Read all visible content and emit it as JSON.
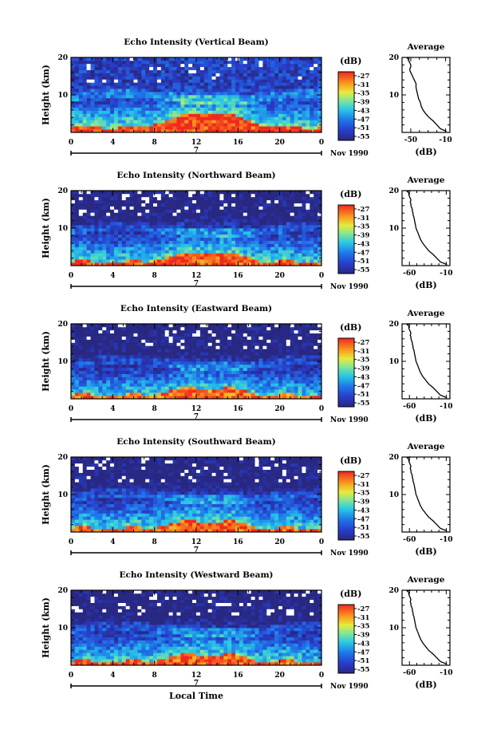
{
  "chart_data": [
    {
      "type": "heatmap",
      "title": "Echo Intensity (Vertical Beam)",
      "ylabel": "Height (km)",
      "xlabel": "",
      "x_ticks": [
        "0",
        "4",
        "8",
        "12",
        "16",
        "20",
        "0"
      ],
      "y_ticks": [
        "10",
        "20"
      ],
      "xlim": [
        0,
        24
      ],
      "ylim": [
        0,
        20
      ],
      "date_marker": "7",
      "date_label": "Nov 1990",
      "colorbar_label": "(dB)",
      "colorbar_ticks": [
        "-27",
        "-31",
        "-35",
        "-39",
        "-43",
        "-47",
        "-51",
        "-55"
      ],
      "surface_db": -27,
      "top_db": -50,
      "thermals": [
        1.5,
        3.5,
        0.8
      ]
    },
    {
      "type": "heatmap",
      "title": "Echo Intensity (Northward Beam)",
      "ylabel": "Height (km)",
      "xlabel": "",
      "x_ticks": [
        "0",
        "4",
        "8",
        "12",
        "16",
        "20",
        "0"
      ],
      "y_ticks": [
        "10",
        "20"
      ],
      "xlim": [
        0,
        24
      ],
      "ylim": [
        0,
        20
      ],
      "date_marker": "7",
      "date_label": "Nov 1990",
      "colorbar_label": "(dB)",
      "colorbar_ticks": [
        "-27",
        "-31",
        "-35",
        "-39",
        "-43",
        "-47",
        "-51",
        "-55"
      ],
      "surface_db": -28,
      "top_db": -55,
      "thermals": [
        1.0,
        2.5,
        1.0
      ]
    },
    {
      "type": "heatmap",
      "title": "Echo Intensity (Eastward Beam)",
      "ylabel": "Height (km)",
      "xlabel": "",
      "x_ticks": [
        "0",
        "4",
        "8",
        "12",
        "16",
        "20",
        "0"
      ],
      "y_ticks": [
        "10",
        "20"
      ],
      "xlim": [
        0,
        24
      ],
      "ylim": [
        0,
        20
      ],
      "date_marker": "7",
      "date_label": "Nov 1990",
      "colorbar_label": "(dB)",
      "colorbar_ticks": [
        "-27",
        "-31",
        "-35",
        "-39",
        "-43",
        "-47",
        "-51",
        "-55"
      ],
      "surface_db": -29,
      "top_db": -55,
      "thermals": [
        1.0,
        2.0,
        1.0
      ]
    },
    {
      "type": "heatmap",
      "title": "Echo Intensity (Southward Beam)",
      "ylabel": "Height (km)",
      "xlabel": "",
      "x_ticks": [
        "0",
        "4",
        "8",
        "12",
        "16",
        "20",
        "0"
      ],
      "y_ticks": [
        "10",
        "20"
      ],
      "xlim": [
        0,
        24
      ],
      "ylim": [
        0,
        20
      ],
      "date_marker": "7",
      "date_label": "Nov 1990",
      "colorbar_label": "(dB)",
      "colorbar_ticks": [
        "-27",
        "-31",
        "-35",
        "-39",
        "-43",
        "-47",
        "-51",
        "-55"
      ],
      "surface_db": -28,
      "top_db": -55,
      "thermals": [
        1.0,
        2.0,
        1.0
      ]
    },
    {
      "type": "heatmap",
      "title": "Echo Intensity (Westward Beam)",
      "ylabel": "Height (km)",
      "xlabel": "Local Time",
      "x_ticks": [
        "0",
        "4",
        "8",
        "12",
        "16",
        "20",
        "0"
      ],
      "y_ticks": [
        "10",
        "20"
      ],
      "xlim": [
        0,
        24
      ],
      "ylim": [
        0,
        20
      ],
      "date_marker": "7",
      "date_label": "Nov 1990",
      "colorbar_label": "(dB)",
      "colorbar_ticks": [
        "-27",
        "-31",
        "-35",
        "-39",
        "-43",
        "-47",
        "-51",
        "-55"
      ],
      "surface_db": -28,
      "top_db": -55,
      "thermals": [
        1.0,
        2.0,
        1.0
      ]
    },
    {
      "type": "line",
      "title": "Average",
      "xlabel": "(dB)",
      "x_ticks": [
        "-50",
        "-10"
      ],
      "y_ticks": [
        "10",
        "20"
      ],
      "xlim": [
        -60,
        -5
      ],
      "ylim": [
        0,
        20
      ],
      "x": [
        -9,
        -16,
        -20,
        -24,
        -29,
        -33,
        -36,
        -38,
        -39,
        -41,
        -42,
        -43,
        -44,
        -44,
        -45,
        -46,
        -47,
        -48,
        -49,
        -50,
        -51,
        -51,
        -50,
        -50,
        -51,
        -52,
        -53,
        -52,
        -54,
        -53,
        -51
      ],
      "y": [
        0.3,
        1,
        2,
        3,
        4,
        5,
        6,
        7,
        8,
        9,
        10,
        11,
        12,
        13,
        13.5,
        14,
        14.5,
        15,
        15.5,
        16,
        16.5,
        17,
        17.5,
        18,
        18.5,
        19,
        19.3,
        19.6,
        19.8,
        20,
        20
      ]
    },
    {
      "type": "line",
      "title": "Average",
      "xlabel": "(dB)",
      "x_ticks": [
        "-60",
        "-10"
      ],
      "y_ticks": [
        "10",
        "20"
      ],
      "xlim": [
        -70,
        -5
      ],
      "ylim": [
        0,
        20
      ],
      "x": [
        -9,
        -18,
        -23,
        -28,
        -34,
        -38,
        -42,
        -45,
        -47,
        -49,
        -51,
        -52,
        -53,
        -54,
        -55,
        -55,
        -56,
        -56,
        -57,
        -58,
        -58,
        -59,
        -58,
        -59,
        -60,
        -61,
        -60,
        -62,
        -63,
        -60,
        -58
      ],
      "y": [
        0.3,
        1,
        2,
        3,
        4,
        5,
        6,
        7,
        8,
        9,
        10,
        11,
        12,
        13,
        13.5,
        14,
        14.5,
        15,
        15.5,
        16,
        16.5,
        17,
        17.5,
        18,
        18.5,
        19,
        19.3,
        19.6,
        19.8,
        20,
        20
      ]
    },
    {
      "type": "line",
      "title": "Average",
      "xlabel": "(dB)",
      "x_ticks": [
        "-60",
        "-10"
      ],
      "y_ticks": [
        "10",
        "20"
      ],
      "xlim": [
        -70,
        -5
      ],
      "ylim": [
        0,
        20
      ],
      "x": [
        -9,
        -18,
        -23,
        -28,
        -34,
        -38,
        -42,
        -45,
        -47,
        -49,
        -51,
        -52,
        -53,
        -54,
        -55,
        -55,
        -56,
        -56,
        -57,
        -58,
        -58,
        -59,
        -58,
        -59,
        -60,
        -61,
        -60,
        -62,
        -63,
        -60,
        -58
      ],
      "y": [
        0.3,
        1,
        2,
        3,
        4,
        5,
        6,
        7,
        8,
        9,
        10,
        11,
        12,
        13,
        13.5,
        14,
        14.5,
        15,
        15.5,
        16,
        16.5,
        17,
        17.5,
        18,
        18.5,
        19,
        19.3,
        19.6,
        19.8,
        20,
        20
      ]
    },
    {
      "type": "line",
      "title": "Average",
      "xlabel": "(dB)",
      "x_ticks": [
        "-60",
        "-10"
      ],
      "y_ticks": [
        "10",
        "20"
      ],
      "xlim": [
        -70,
        -5
      ],
      "ylim": [
        0,
        20
      ],
      "x": [
        -9,
        -18,
        -23,
        -28,
        -34,
        -38,
        -42,
        -45,
        -47,
        -49,
        -51,
        -52,
        -53,
        -54,
        -55,
        -55,
        -56,
        -56,
        -57,
        -58,
        -58,
        -59,
        -58,
        -59,
        -60,
        -61,
        -60,
        -62,
        -63,
        -60,
        -58
      ],
      "y": [
        0.3,
        1,
        2,
        3,
        4,
        5,
        6,
        7,
        8,
        9,
        10,
        11,
        12,
        13,
        13.5,
        14,
        14.5,
        15,
        15.5,
        16,
        16.5,
        17,
        17.5,
        18,
        18.5,
        19,
        19.3,
        19.6,
        19.8,
        20,
        20
      ]
    },
    {
      "type": "line",
      "title": "Average",
      "xlabel": "(dB)",
      "x_ticks": [
        "-60",
        "-10"
      ],
      "y_ticks": [
        "10",
        "20"
      ],
      "xlim": [
        -70,
        -5
      ],
      "ylim": [
        0,
        20
      ],
      "x": [
        -9,
        -18,
        -23,
        -28,
        -34,
        -38,
        -42,
        -45,
        -47,
        -49,
        -51,
        -52,
        -53,
        -54,
        -55,
        -55,
        -56,
        -56,
        -57,
        -58,
        -58,
        -59,
        -58,
        -59,
        -60,
        -61,
        -60,
        -62,
        -63,
        -60,
        -58
      ],
      "y": [
        0.3,
        1,
        2,
        3,
        4,
        5,
        6,
        7,
        8,
        9,
        10,
        11,
        12,
        13,
        13.5,
        14,
        14.5,
        15,
        15.5,
        16,
        16.5,
        17,
        17.5,
        18,
        18.5,
        19,
        19.3,
        19.6,
        19.8,
        20,
        20
      ]
    }
  ]
}
